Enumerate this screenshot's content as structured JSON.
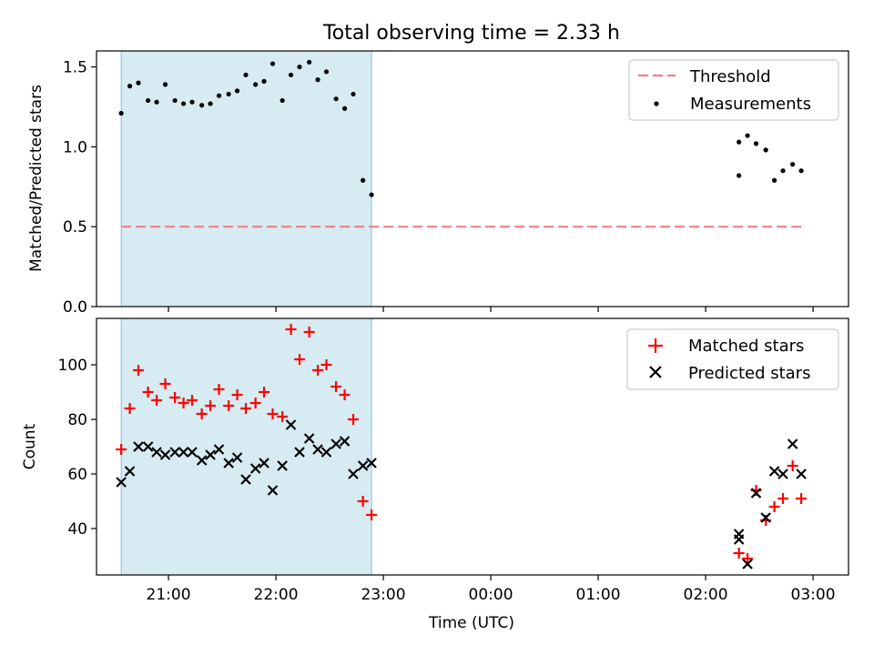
{
  "chart_data": [
    {
      "type": "scatter",
      "title": "Total observing time = 2.33 h",
      "xlabel": "",
      "ylabel": "Matched/Predicted stars",
      "xlim_hours": [
        20.33,
        27.33
      ],
      "ylim": [
        0,
        1.6
      ],
      "yticks": [
        "0.0",
        "0.5",
        "1.0",
        "1.5"
      ],
      "legend_position": "top-right",
      "grid": false,
      "shaded_span_hours": [
        20.56,
        22.89
      ],
      "threshold": {
        "name": "Threshold",
        "value": 0.5,
        "x_range_hours": [
          20.56,
          26.89
        ],
        "color": "#f08080"
      },
      "measurements": {
        "name": "Measurements",
        "color": "#000000",
        "x_hours": [
          20.56,
          20.64,
          20.72,
          20.81,
          20.89,
          20.97,
          21.06,
          21.14,
          21.22,
          21.31,
          21.39,
          21.47,
          21.56,
          21.64,
          21.72,
          21.81,
          21.89,
          21.97,
          22.06,
          22.14,
          22.22,
          22.31,
          22.39,
          22.47,
          22.56,
          22.64,
          22.72,
          22.81,
          22.89,
          26.31,
          26.31,
          26.39,
          26.47,
          26.56,
          26.64,
          26.72,
          26.81,
          26.89
        ],
        "y": [
          1.21,
          1.38,
          1.4,
          1.29,
          1.28,
          1.39,
          1.29,
          1.27,
          1.28,
          1.26,
          1.27,
          1.32,
          1.33,
          1.35,
          1.45,
          1.39,
          1.41,
          1.52,
          1.29,
          1.45,
          1.5,
          1.53,
          1.42,
          1.47,
          1.3,
          1.24,
          1.33,
          0.79,
          0.7,
          1.03,
          0.82,
          1.07,
          1.02,
          0.98,
          0.79,
          0.85,
          0.89,
          0.85
        ]
      }
    },
    {
      "type": "scatter",
      "title": "",
      "xlabel": "Time (UTC)",
      "ylabel": "Count",
      "xlim_hours": [
        20.33,
        27.33
      ],
      "ylim": [
        23,
        117
      ],
      "yticks": [
        "40",
        "60",
        "80",
        "100"
      ],
      "xticks": [
        "21:00",
        "22:00",
        "23:00",
        "00:00",
        "01:00",
        "02:00",
        "03:00"
      ],
      "legend_position": "top-right",
      "grid": false,
      "shaded_span_hours": [
        20.56,
        22.89
      ],
      "series": [
        {
          "name": "Matched stars",
          "marker": "plus",
          "color": "#ff0000",
          "x_hours": [
            20.56,
            20.64,
            20.72,
            20.81,
            20.89,
            20.97,
            21.06,
            21.14,
            21.22,
            21.31,
            21.39,
            21.47,
            21.56,
            21.64,
            21.72,
            21.81,
            21.89,
            21.97,
            22.06,
            22.14,
            22.22,
            22.31,
            22.39,
            22.47,
            22.56,
            22.64,
            22.72,
            22.81,
            22.89,
            26.31,
            26.39,
            26.47,
            26.56,
            26.64,
            26.72,
            26.81,
            26.89
          ],
          "y": [
            69,
            84,
            98,
            90,
            87,
            93,
            88,
            86,
            87,
            82,
            85,
            91,
            85,
            89,
            84,
            86,
            90,
            82,
            81,
            113,
            102,
            112,
            98,
            100,
            92,
            89,
            80,
            50,
            45,
            31,
            29,
            54,
            43,
            48,
            51,
            63,
            51
          ]
        },
        {
          "name": "Predicted stars",
          "marker": "x",
          "color": "#000000",
          "x_hours": [
            20.56,
            20.64,
            20.72,
            20.81,
            20.89,
            20.97,
            21.06,
            21.14,
            21.22,
            21.31,
            21.39,
            21.47,
            21.56,
            21.64,
            21.72,
            21.81,
            21.89,
            21.97,
            22.06,
            22.14,
            22.22,
            22.31,
            22.39,
            22.47,
            22.56,
            22.64,
            22.72,
            22.81,
            22.89,
            26.31,
            26.31,
            26.39,
            26.47,
            26.56,
            26.64,
            26.72,
            26.81,
            26.89
          ],
          "y": [
            57,
            61,
            70,
            70,
            68,
            67,
            68,
            68,
            68,
            65,
            67,
            69,
            64,
            66,
            58,
            62,
            64,
            54,
            63,
            78,
            68,
            73,
            69,
            68,
            71,
            72,
            60,
            63,
            64,
            38,
            36,
            27,
            53,
            44,
            61,
            60,
            71,
            60
          ]
        }
      ]
    }
  ]
}
